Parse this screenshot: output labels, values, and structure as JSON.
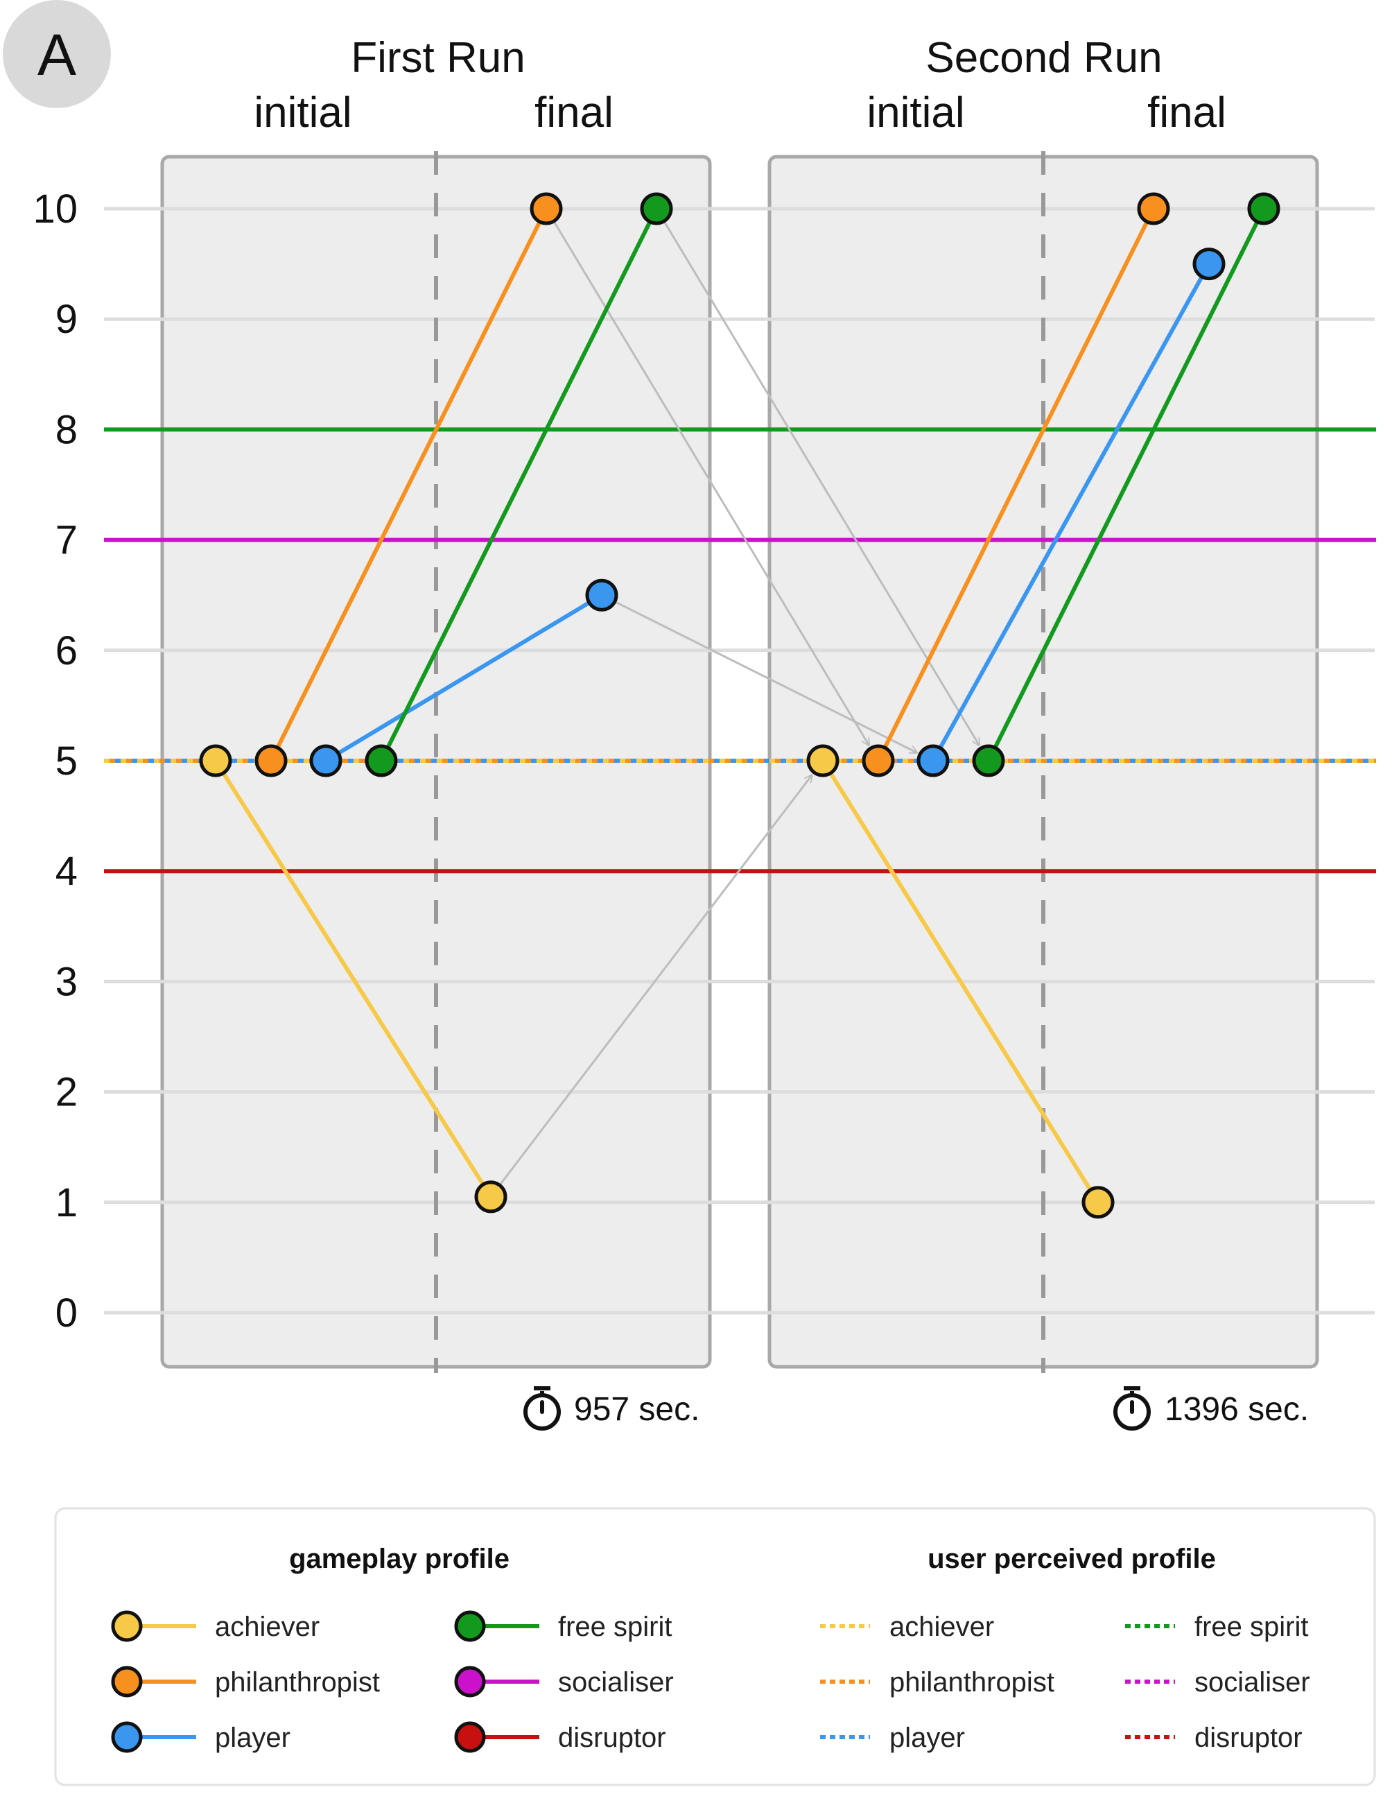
{
  "badge": "A",
  "colors": {
    "achiever": "#F7C948",
    "philanthropist": "#F7901E",
    "player": "#3B96F0",
    "free spirit": "#139A1E",
    "socialiser": "#CC11CC",
    "disruptor": "#C81010",
    "panel_fill": "#EDEDED",
    "panel_border": "#A8A8A8",
    "grid": "#DDDDDD",
    "transition_arrow": "#BDBDBD"
  },
  "chart_data": {
    "type": "line",
    "ylim": [
      0,
      10
    ],
    "yticks": [
      "0",
      "1",
      "2",
      "3",
      "4",
      "5",
      "6",
      "7",
      "8",
      "9",
      "10"
    ],
    "phase_labels": [
      "initial",
      "final"
    ],
    "runs": [
      {
        "title": "First Run",
        "duration_label": "957 sec.",
        "initial": {
          "achiever": 5,
          "philanthropist": 5,
          "player": 5,
          "free spirit": 5
        },
        "final": {
          "achiever": 1.05,
          "philanthropist": 10,
          "player": 6.5,
          "free spirit": 10
        }
      },
      {
        "title": "Second Run",
        "duration_label": "1396 sec.",
        "initial": {
          "achiever": 5,
          "philanthropist": 5,
          "player": 5,
          "free spirit": 5
        },
        "final": {
          "achiever": 1,
          "philanthropist": 10,
          "player": 9.5,
          "free spirit": 10
        }
      }
    ],
    "user_perceived_profile": {
      "achiever": 5,
      "philanthropist": 5,
      "player": 5,
      "free spirit": 8,
      "socialiser": 7,
      "disruptor": 4
    },
    "transitions": [
      {
        "profile": "achiever"
      },
      {
        "profile": "philanthropist"
      },
      {
        "profile": "player"
      },
      {
        "profile": "free spirit"
      }
    ]
  },
  "legend": {
    "gameplay_title": "gameplay profile",
    "perceived_title": "user perceived profile",
    "gameplay_items": [
      "achiever",
      "philanthropist",
      "player",
      "free spirit",
      "socialiser",
      "disruptor"
    ],
    "perceived_items": [
      "achiever",
      "philanthropist",
      "player",
      "free spirit",
      "socialiser",
      "disruptor"
    ]
  }
}
